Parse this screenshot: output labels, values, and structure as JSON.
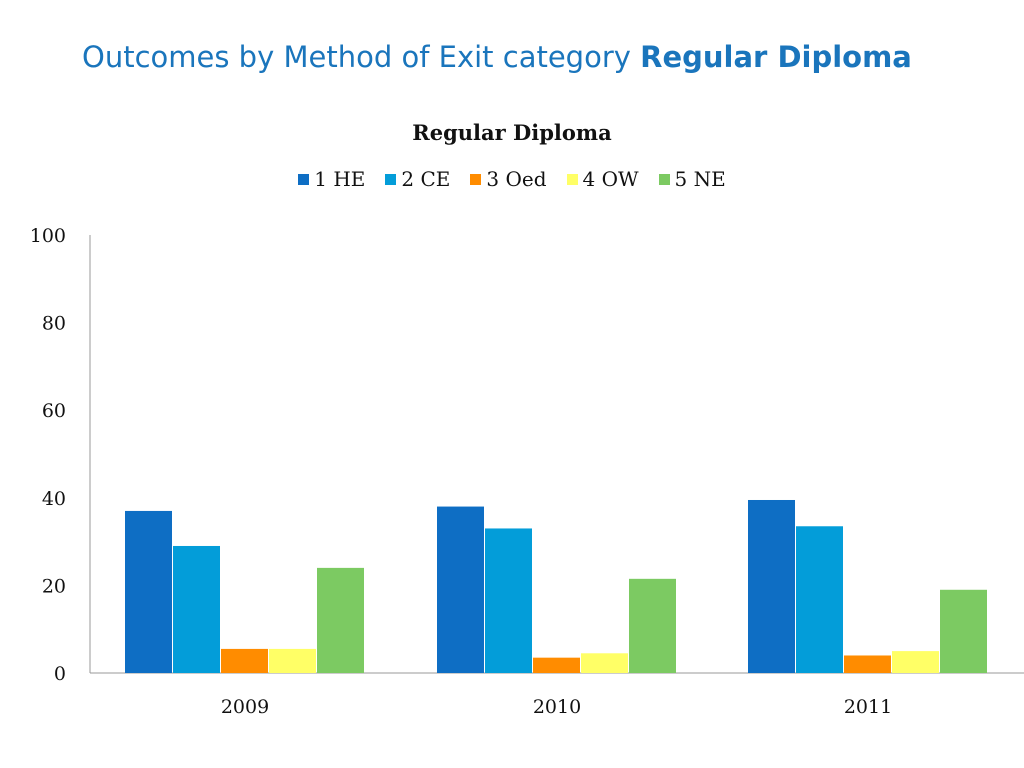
{
  "slide": {
    "title_regular": "Outcomes by Method of Exit category",
    "title_bold": "Regular Diploma"
  },
  "chart_data": {
    "type": "bar",
    "title": "Regular Diploma",
    "categories": [
      "2009",
      "2010",
      "2011"
    ],
    "series": [
      {
        "name": "1  HE",
        "color": "#0e6ec4",
        "values": [
          37,
          38,
          39.5
        ]
      },
      {
        "name": "2 CE",
        "color": "#039dd9",
        "values": [
          29,
          33,
          33.5
        ]
      },
      {
        "name": "3 Oed",
        "color": "#ff8c00",
        "values": [
          5.5,
          3.5,
          4
        ]
      },
      {
        "name": "4 OW",
        "color": "#ffff66",
        "values": [
          5.5,
          4.5,
          5
        ]
      },
      {
        "name": "5 NE",
        "color": "#7cca62",
        "values": [
          24,
          21.5,
          19
        ]
      }
    ],
    "y_ticks": [
      "0",
      "20",
      "40",
      "60",
      "80",
      "100"
    ],
    "ylim": [
      0,
      100
    ],
    "grid": false,
    "legend_position": "top"
  }
}
